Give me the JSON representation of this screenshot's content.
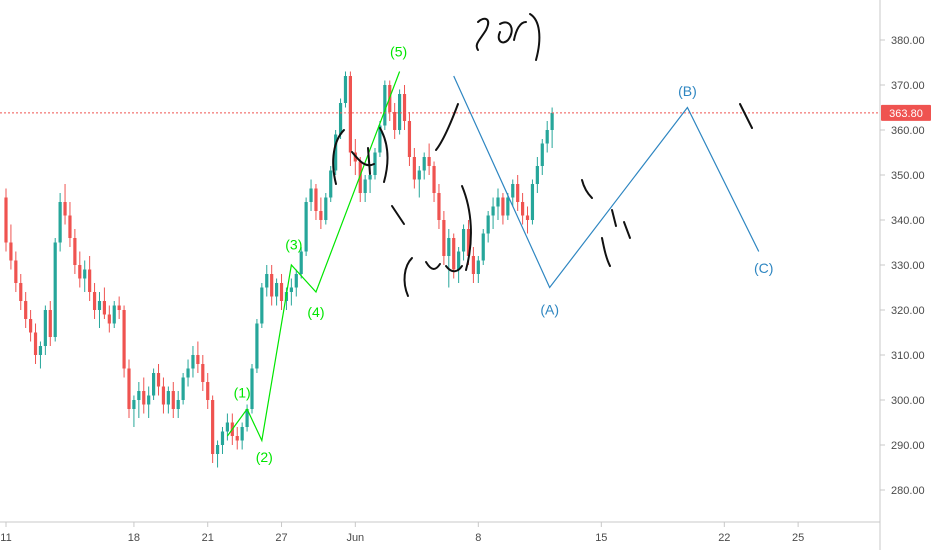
{
  "chart_data": {
    "type": "candlestick",
    "title": "",
    "xlabel": "",
    "ylabel": "",
    "ylim": [
      276,
      384
    ],
    "grid": false,
    "colors": {
      "up": "#26a69a",
      "down": "#ef5350",
      "impulse": "#00e600",
      "corrective": "#2e86c1",
      "price_line": "#ef5350",
      "axis_text": "#4a4a4a"
    },
    "y_ticks": [
      {
        "value": 380,
        "label": "380.00"
      },
      {
        "value": 370,
        "label": "370.00"
      },
      {
        "value": 360,
        "label": "360.00"
      },
      {
        "value": 350,
        "label": "350.00"
      },
      {
        "value": 340,
        "label": "340.00"
      },
      {
        "value": 330,
        "label": "330.00"
      },
      {
        "value": 320,
        "label": "320.00"
      },
      {
        "value": 310,
        "label": "310.00"
      },
      {
        "value": 300,
        "label": "300.00"
      },
      {
        "value": 290,
        "label": "290.00"
      },
      {
        "value": 280,
        "label": "280.00"
      }
    ],
    "x_ticks": [
      {
        "t": 0,
        "label": "11"
      },
      {
        "t": 26,
        "label": "18"
      },
      {
        "t": 41,
        "label": "21"
      },
      {
        "t": 56,
        "label": "27"
      },
      {
        "t": 71,
        "label": "Jun"
      },
      {
        "t": 96,
        "label": "8"
      },
      {
        "t": 121,
        "label": "15"
      },
      {
        "t": 146,
        "label": "22"
      },
      {
        "t": 161,
        "label": "25"
      }
    ],
    "last_price": {
      "value": 363.8,
      "label": "363.80"
    },
    "candles": [
      [
        0,
        345,
        347,
        333,
        335
      ],
      [
        1,
        335,
        339,
        329,
        331
      ],
      [
        2,
        331,
        333,
        324,
        326
      ],
      [
        3,
        326,
        328,
        320,
        322
      ],
      [
        4,
        322,
        324,
        316,
        318
      ],
      [
        5,
        318,
        320,
        313,
        315
      ],
      [
        6,
        315,
        317,
        308,
        310
      ],
      [
        7,
        310,
        313,
        307,
        312
      ],
      [
        8,
        312,
        321,
        310,
        320
      ],
      [
        9,
        320,
        322,
        312,
        314
      ],
      [
        10,
        314,
        336,
        313,
        335
      ],
      [
        11,
        335,
        346,
        333,
        344
      ],
      [
        12,
        344,
        348,
        339,
        341
      ],
      [
        13,
        341,
        344,
        334,
        336
      ],
      [
        14,
        336,
        338,
        328,
        330
      ],
      [
        15,
        330,
        333,
        325,
        327
      ],
      [
        16,
        327,
        331,
        324,
        329
      ],
      [
        17,
        329,
        332,
        322,
        324
      ],
      [
        18,
        324,
        326,
        318,
        320
      ],
      [
        19,
        320,
        324,
        316,
        322
      ],
      [
        20,
        322,
        325,
        318,
        319
      ],
      [
        21,
        319,
        321,
        315,
        317
      ],
      [
        22,
        317,
        322,
        316,
        321
      ],
      [
        23,
        321,
        323,
        318,
        320
      ],
      [
        24,
        320,
        321,
        305,
        307
      ],
      [
        25,
        307,
        309,
        296,
        298
      ],
      [
        26,
        298,
        301,
        294,
        300
      ],
      [
        27,
        300,
        304,
        296,
        302
      ],
      [
        28,
        302,
        305,
        297,
        299
      ],
      [
        29,
        299,
        303,
        296,
        301
      ],
      [
        30,
        301,
        307,
        300,
        306
      ],
      [
        31,
        306,
        308,
        301,
        303
      ],
      [
        32,
        303,
        305,
        297,
        299
      ],
      [
        33,
        299,
        303,
        297,
        302
      ],
      [
        34,
        302,
        304,
        296,
        298
      ],
      [
        35,
        298,
        302,
        296,
        300
      ],
      [
        36,
        300,
        306,
        299,
        305
      ],
      [
        37,
        305,
        309,
        303,
        307
      ],
      [
        38,
        307,
        312,
        305,
        310
      ],
      [
        39,
        310,
        313,
        306,
        308
      ],
      [
        40,
        308,
        310,
        302,
        304
      ],
      [
        41,
        304,
        306,
        298,
        300
      ],
      [
        42,
        300,
        301,
        286,
        288
      ],
      [
        43,
        288,
        291,
        285,
        290
      ],
      [
        44,
        290,
        294,
        288,
        293
      ],
      [
        45,
        293,
        297,
        291,
        295
      ],
      [
        46,
        295,
        297,
        290,
        292
      ],
      [
        47,
        292,
        294,
        289,
        291
      ],
      [
        48,
        291,
        295,
        289,
        294
      ],
      [
        49,
        294,
        299,
        293,
        298
      ],
      [
        50,
        298,
        308,
        297,
        307
      ],
      [
        51,
        307,
        318,
        306,
        317
      ],
      [
        52,
        317,
        326,
        316,
        325
      ],
      [
        53,
        325,
        330,
        323,
        328
      ],
      [
        54,
        328,
        330,
        321,
        323
      ],
      [
        55,
        323,
        327,
        321,
        326
      ],
      [
        56,
        326,
        328,
        320,
        322
      ],
      [
        57,
        322,
        325,
        320,
        324
      ],
      [
        58,
        324,
        327,
        321,
        325
      ],
      [
        59,
        325,
        329,
        323,
        328
      ],
      [
        60,
        328,
        334,
        327,
        333
      ],
      [
        61,
        333,
        345,
        332,
        344
      ],
      [
        62,
        344,
        349,
        342,
        347
      ],
      [
        63,
        347,
        348,
        340,
        342
      ],
      [
        64,
        342,
        345,
        338,
        340
      ],
      [
        65,
        340,
        346,
        339,
        345
      ],
      [
        66,
        345,
        352,
        344,
        351
      ],
      [
        67,
        351,
        360,
        350,
        359
      ],
      [
        68,
        359,
        367,
        358,
        366
      ],
      [
        69,
        366,
        373,
        365,
        372
      ],
      [
        70,
        372,
        373,
        352,
        355
      ],
      [
        71,
        355,
        358,
        350,
        353
      ],
      [
        72,
        353,
        354,
        344,
        346
      ],
      [
        73,
        346,
        350,
        344,
        349
      ],
      [
        74,
        349,
        352,
        346,
        350
      ],
      [
        75,
        350,
        356,
        349,
        355
      ],
      [
        76,
        355,
        362,
        354,
        361
      ],
      [
        77,
        361,
        371,
        360,
        370
      ],
      [
        78,
        370,
        371,
        362,
        364
      ],
      [
        79,
        364,
        366,
        358,
        360
      ],
      [
        80,
        360,
        369,
        359,
        368
      ],
      [
        81,
        368,
        370,
        360,
        362
      ],
      [
        82,
        362,
        364,
        352,
        354
      ],
      [
        83,
        354,
        356,
        347,
        349
      ],
      [
        84,
        349,
        352,
        345,
        351
      ],
      [
        85,
        351,
        355,
        349,
        354
      ],
      [
        86,
        354,
        357,
        350,
        352
      ],
      [
        87,
        352,
        353,
        344,
        346
      ],
      [
        88,
        346,
        348,
        338,
        340
      ],
      [
        89,
        340,
        342,
        330,
        332
      ],
      [
        90,
        332,
        338,
        325,
        336
      ],
      [
        91,
        336,
        337,
        327,
        329
      ],
      [
        92,
        329,
        334,
        326,
        333
      ],
      [
        93,
        333,
        339,
        331,
        338
      ],
      [
        94,
        338,
        340,
        330,
        332
      ],
      [
        95,
        332,
        334,
        326,
        328
      ],
      [
        96,
        328,
        332,
        326,
        331
      ],
      [
        97,
        331,
        338,
        330,
        337
      ],
      [
        98,
        337,
        342,
        335,
        341
      ],
      [
        99,
        341,
        345,
        338,
        343
      ],
      [
        100,
        343,
        347,
        340,
        345
      ],
      [
        101,
        345,
        346,
        339,
        341
      ],
      [
        102,
        341,
        346,
        340,
        345
      ],
      [
        103,
        345,
        349,
        343,
        348
      ],
      [
        104,
        348,
        350,
        342,
        344
      ],
      [
        105,
        344,
        346,
        339,
        341
      ],
      [
        106,
        341,
        343,
        337,
        340
      ],
      [
        107,
        340,
        349,
        339,
        348
      ],
      [
        108,
        348,
        354,
        346,
        352
      ],
      [
        109,
        352,
        358,
        350,
        357
      ],
      [
        110,
        357,
        362,
        355,
        360
      ],
      [
        111,
        360,
        365,
        356,
        363.8
      ]
    ],
    "wave_labels": [
      {
        "text": "(1)",
        "t": 48,
        "y": 300.6,
        "color": "#00e600"
      },
      {
        "text": "(2)",
        "t": 52.5,
        "y": 286.2,
        "color": "#00e600"
      },
      {
        "text": "(3)",
        "t": 58.5,
        "y": 333.4,
        "color": "#00e600"
      },
      {
        "text": "(4)",
        "t": 63,
        "y": 318.4,
        "color": "#00e600"
      },
      {
        "text": "(5)",
        "t": 79.8,
        "y": 376.3,
        "color": "#00e600"
      },
      {
        "text": "(A)",
        "t": 110.5,
        "y": 319,
        "color": "#2e86c1"
      },
      {
        "text": "(B)",
        "t": 138.5,
        "y": 367.6,
        "color": "#2e86c1"
      },
      {
        "text": "(C)",
        "t": 154,
        "y": 328.2,
        "color": "#2e86c1"
      }
    ],
    "wave_lines": [
      {
        "color": "#00e600",
        "points": [
          [
            45,
            292
          ],
          [
            49,
            298
          ],
          [
            52,
            291
          ],
          [
            58,
            330
          ],
          [
            63,
            324
          ],
          [
            80,
            373
          ]
        ]
      },
      {
        "color": "#2e86c1",
        "points": [
          [
            91,
            372
          ],
          [
            110.5,
            325
          ],
          [
            138.5,
            365
          ],
          [
            153,
            333
          ]
        ]
      }
    ]
  }
}
